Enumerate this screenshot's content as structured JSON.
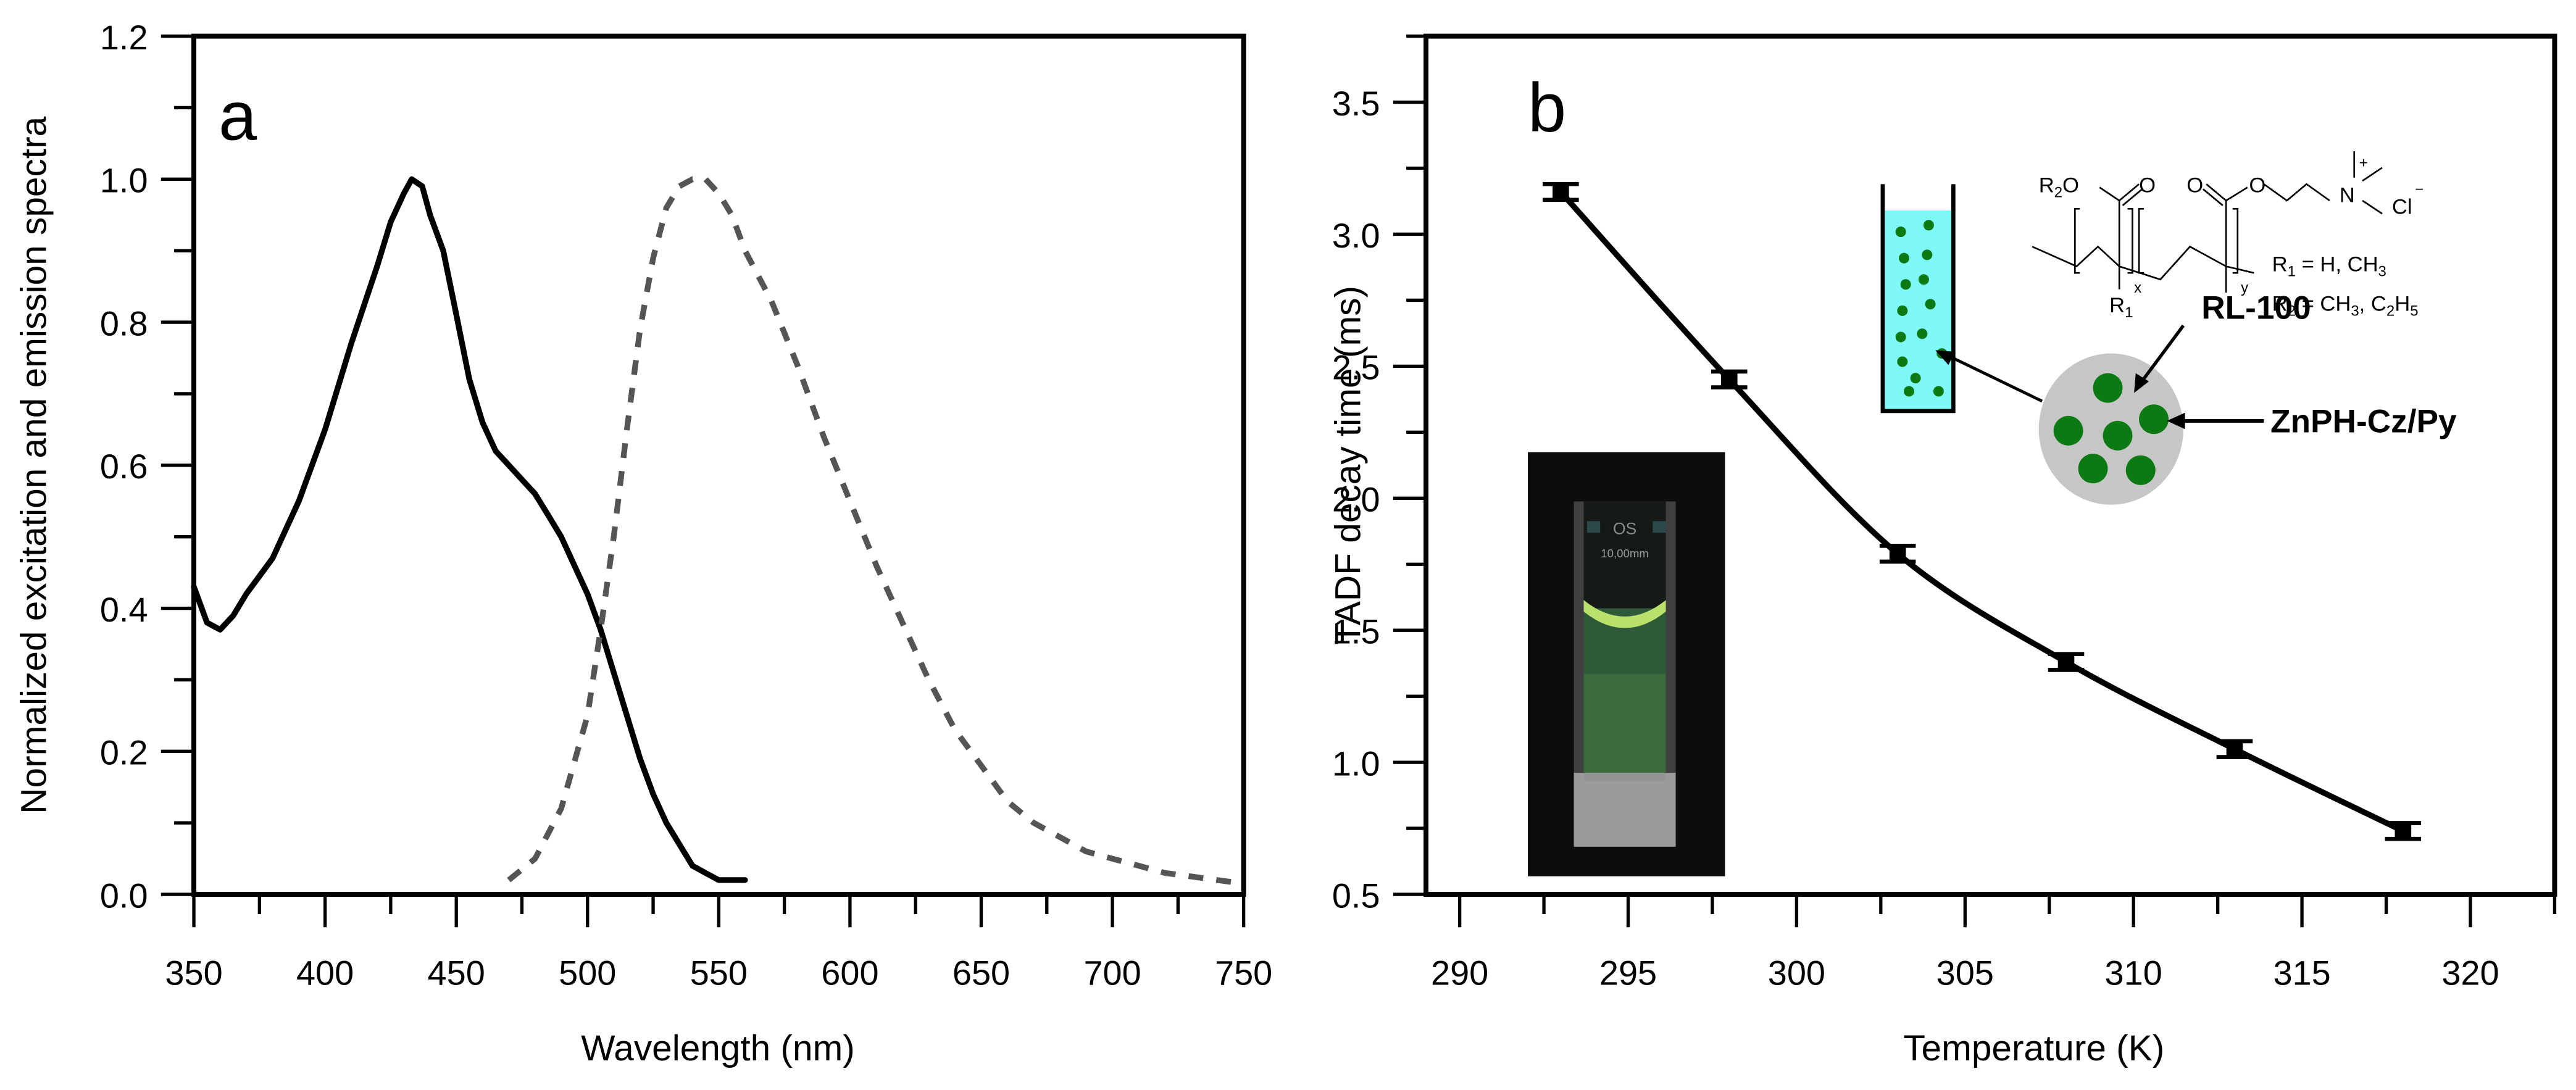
{
  "figure": {
    "panel_a": {
      "letter": "a",
      "xlabel": "Wavelength (nm)",
      "ylabel": "Normalized excitation and emission spectra",
      "xticks": [
        "350",
        "400",
        "450",
        "500",
        "550",
        "600",
        "650",
        "700",
        "750"
      ],
      "yticks": [
        "0.0",
        "0.2",
        "0.4",
        "0.6",
        "0.8",
        "1.0",
        "1.2"
      ]
    },
    "panel_b": {
      "letter": "b",
      "xlabel": "Temperature (K)",
      "ylabel": "TADF decay time (ms)",
      "xticks": [
        "290",
        "295",
        "300",
        "305",
        "310",
        "315",
        "320"
      ],
      "yticks": [
        "0.5",
        "1.0",
        "1.5",
        "2.0",
        "2.5",
        "3.0",
        "3.5"
      ],
      "labels": {
        "rl100": "RL-100",
        "znph": "ZnPH-Cz/Py",
        "r1_def": "R1 = H, CH3",
        "r2_def": "R2 = CH3, C2H5",
        "cuvette_brand": "OS",
        "cuvette_size": "10,00mm"
      }
    }
  },
  "chart_data": [
    {
      "type": "line",
      "title": "",
      "panel": "a",
      "xlabel": "Wavelength (nm)",
      "ylabel": "Normalized excitation and emission spectra",
      "xlim": [
        350,
        750
      ],
      "ylim": [
        0.0,
        1.2
      ],
      "grid": false,
      "legend": null,
      "series": [
        {
          "name": "Excitation",
          "style": "solid",
          "color": "#000000",
          "x": [
            350,
            355,
            360,
            365,
            370,
            380,
            390,
            400,
            410,
            420,
            425,
            430,
            433,
            437,
            440,
            445,
            450,
            455,
            460,
            465,
            470,
            475,
            480,
            485,
            490,
            495,
            500,
            505,
            510,
            515,
            520,
            525,
            530,
            535,
            540,
            545,
            550,
            555,
            560
          ],
          "y": [
            0.43,
            0.38,
            0.37,
            0.39,
            0.42,
            0.47,
            0.55,
            0.65,
            0.77,
            0.88,
            0.94,
            0.98,
            1.0,
            0.99,
            0.95,
            0.9,
            0.81,
            0.72,
            0.66,
            0.62,
            0.6,
            0.58,
            0.56,
            0.53,
            0.5,
            0.46,
            0.42,
            0.37,
            0.31,
            0.25,
            0.19,
            0.14,
            0.1,
            0.07,
            0.04,
            0.03,
            0.02,
            0.02,
            0.02
          ]
        },
        {
          "name": "Emission",
          "style": "dashed",
          "color": "#555555",
          "x": [
            470,
            480,
            490,
            500,
            505,
            510,
            515,
            520,
            525,
            530,
            535,
            540,
            545,
            550,
            555,
            560,
            570,
            580,
            590,
            600,
            610,
            620,
            630,
            640,
            650,
            660,
            670,
            680,
            690,
            700,
            710,
            720,
            730,
            740,
            750
          ],
          "y": [
            0.02,
            0.05,
            0.12,
            0.25,
            0.37,
            0.5,
            0.65,
            0.79,
            0.89,
            0.96,
            0.99,
            1.0,
            1.0,
            0.98,
            0.95,
            0.9,
            0.83,
            0.74,
            0.64,
            0.55,
            0.46,
            0.38,
            0.3,
            0.23,
            0.18,
            0.13,
            0.1,
            0.08,
            0.06,
            0.05,
            0.04,
            0.03,
            0.025,
            0.02,
            0.015
          ]
        }
      ]
    },
    {
      "type": "scatter",
      "title": "",
      "panel": "b",
      "xlabel": "Temperature (K)",
      "ylabel": "TADF decay time (ms)",
      "xlim": [
        290,
        322
      ],
      "ylim": [
        0.5,
        3.7
      ],
      "grid": false,
      "legend": null,
      "series": [
        {
          "name": "TADF decay time",
          "marker": "square with error bars",
          "fit_line": "solid black",
          "x": [
            293,
            298,
            303,
            308,
            313,
            318
          ],
          "y": [
            3.16,
            2.45,
            1.79,
            1.38,
            1.05,
            0.74
          ],
          "error": [
            0.03,
            0.03,
            0.03,
            0.03,
            0.03,
            0.03
          ]
        }
      ]
    }
  ]
}
